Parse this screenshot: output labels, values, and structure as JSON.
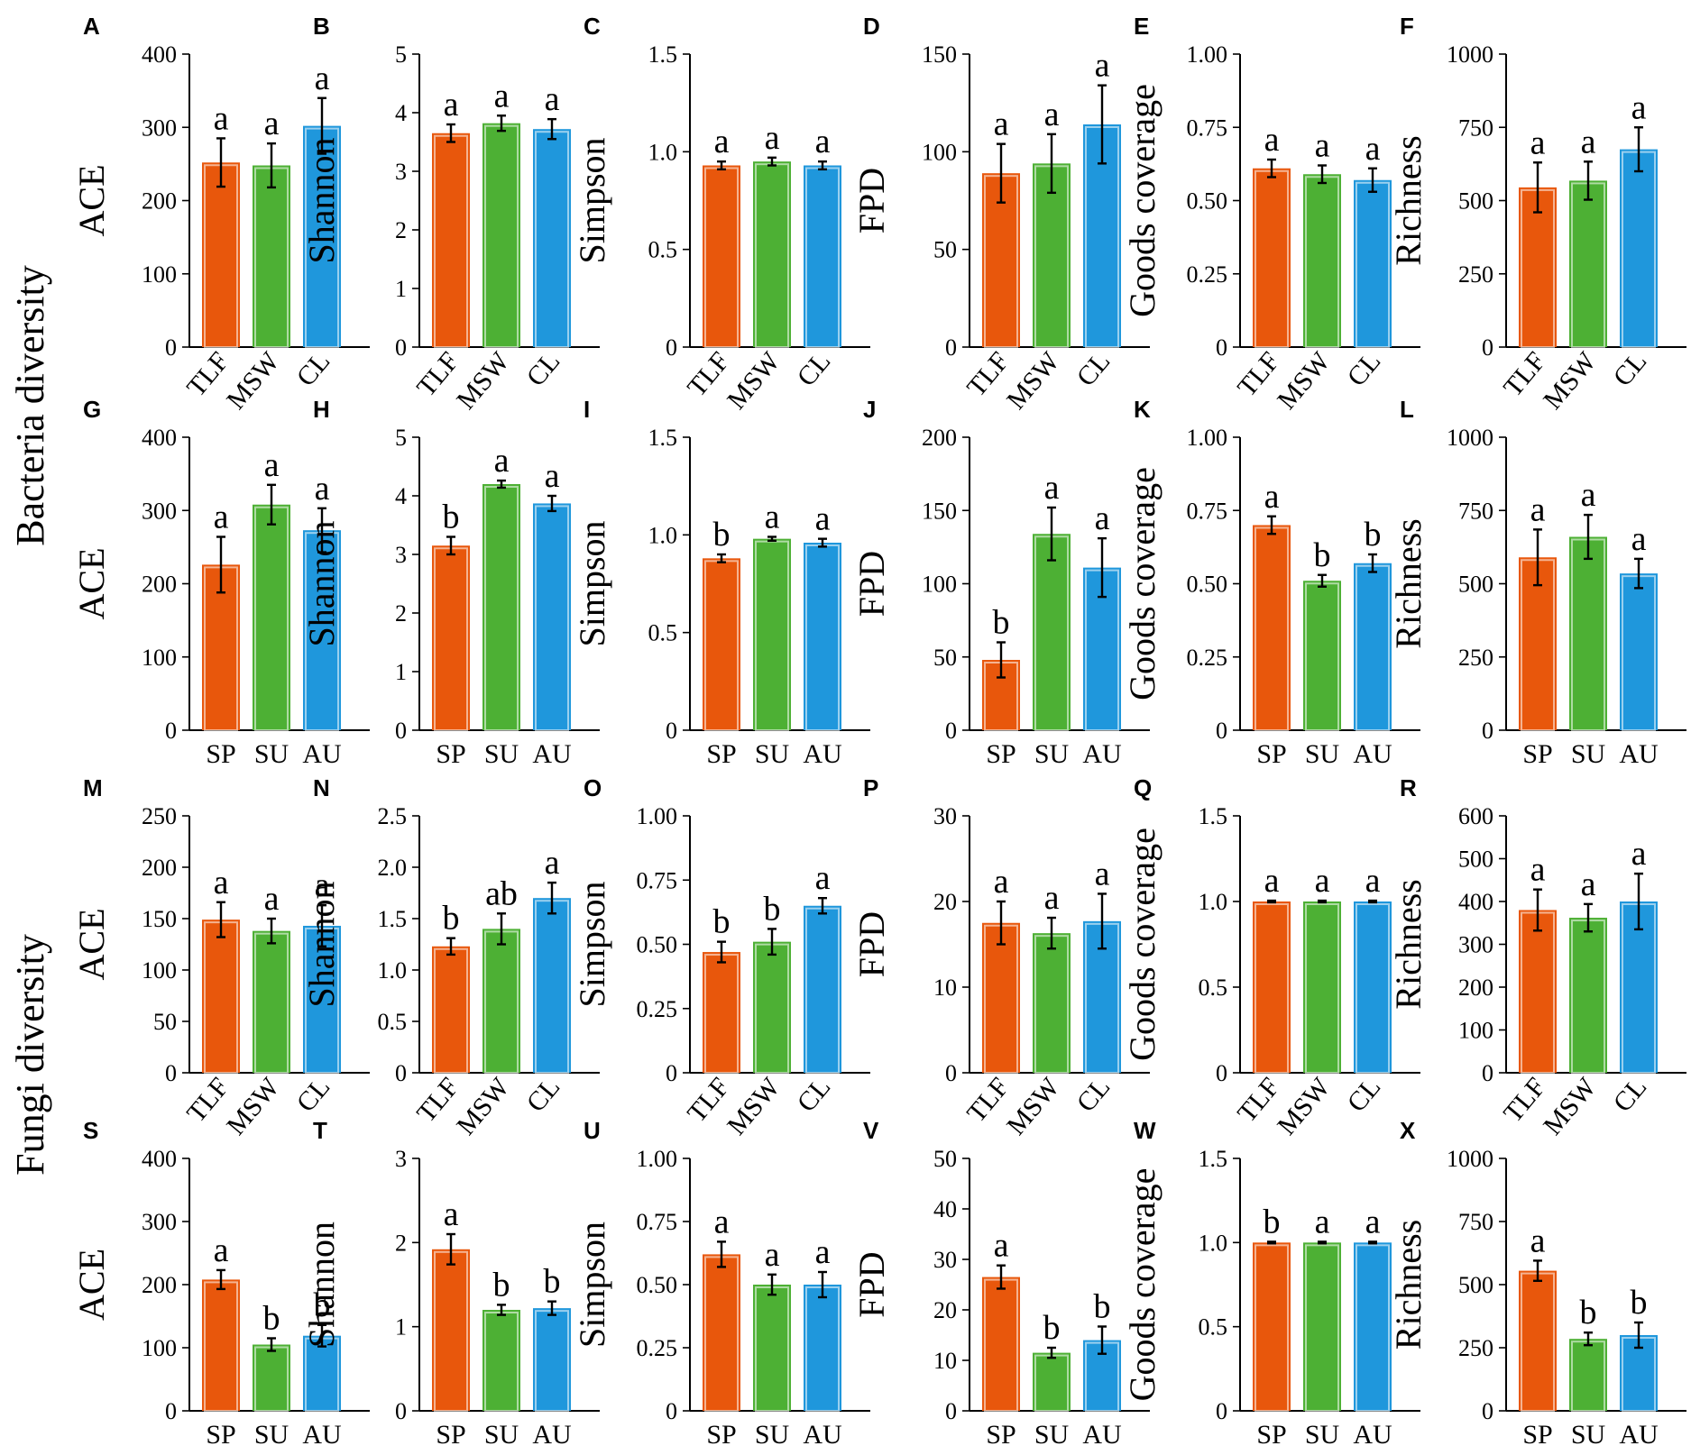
{
  "figure": {
    "row_labels": [
      "Bacteria diversity",
      "Fungi diversity"
    ]
  },
  "colors": {
    "group1": "#e8570c",
    "group2": "#4db034",
    "group3": "#1f97dc"
  },
  "chart_data": [
    {
      "id": "A",
      "type": "bar",
      "row": 0,
      "col": 0,
      "ylabel": "ACE",
      "ylim": [
        0,
        400
      ],
      "ticks": [
        0,
        100,
        200,
        300,
        400
      ],
      "tick_labels": [
        "0",
        "100",
        "200",
        "300",
        "400"
      ],
      "categories": [
        "TLF",
        "MSW",
        "CL"
      ],
      "cat_rotated": true,
      "values": [
        252,
        248,
        302
      ],
      "errors": [
        33,
        30,
        38
      ],
      "letters": [
        "a",
        "a",
        "a"
      ]
    },
    {
      "id": "B",
      "type": "bar",
      "row": 0,
      "col": 1,
      "ylabel": "Shannon",
      "ylim": [
        0,
        5
      ],
      "ticks": [
        0,
        1,
        2,
        3,
        4,
        5
      ],
      "tick_labels": [
        "0",
        "1",
        "2",
        "3",
        "4",
        "5"
      ],
      "categories": [
        "TLF",
        "MSW",
        "CL"
      ],
      "cat_rotated": true,
      "values": [
        3.65,
        3.82,
        3.72
      ],
      "errors": [
        0.15,
        0.13,
        0.17
      ],
      "letters": [
        "a",
        "a",
        "a"
      ]
    },
    {
      "id": "C",
      "type": "bar",
      "row": 0,
      "col": 2,
      "ylabel": "Simpson",
      "ylim": [
        0,
        1.5
      ],
      "ticks": [
        0,
        0.5,
        1.0,
        1.5
      ],
      "tick_labels": [
        "0",
        "0.5",
        "1.0",
        "1.5"
      ],
      "categories": [
        "TLF",
        "MSW",
        "CL"
      ],
      "cat_rotated": true,
      "values": [
        0.93,
        0.95,
        0.93
      ],
      "errors": [
        0.02,
        0.02,
        0.02
      ],
      "letters": [
        "a",
        "a",
        "a"
      ]
    },
    {
      "id": "D",
      "type": "bar",
      "row": 0,
      "col": 3,
      "ylabel": "FPD",
      "ylim": [
        0,
        150
      ],
      "ticks": [
        0,
        50,
        100,
        150
      ],
      "tick_labels": [
        "0",
        "50",
        "100",
        "150"
      ],
      "categories": [
        "TLF",
        "MSW",
        "CL"
      ],
      "cat_rotated": true,
      "values": [
        89,
        94,
        114
      ],
      "errors": [
        15,
        15,
        20
      ],
      "letters": [
        "a",
        "a",
        "a"
      ]
    },
    {
      "id": "E",
      "type": "bar",
      "row": 0,
      "col": 4,
      "ylabel": "Goods coverage",
      "ylim": [
        0,
        1.0
      ],
      "ticks": [
        0,
        0.25,
        0.5,
        0.75,
        1.0
      ],
      "tick_labels": [
        "0",
        "0.25",
        "0.50",
        "0.75",
        "1.00"
      ],
      "categories": [
        "TLF",
        "MSW",
        "CL"
      ],
      "cat_rotated": true,
      "values": [
        0.61,
        0.59,
        0.57
      ],
      "errors": [
        0.03,
        0.03,
        0.04
      ],
      "letters": [
        "a",
        "a",
        "a"
      ]
    },
    {
      "id": "F",
      "type": "bar",
      "row": 0,
      "col": 5,
      "ylabel": "Richness",
      "ylim": [
        0,
        1000
      ],
      "ticks": [
        0,
        250,
        500,
        750,
        1000
      ],
      "tick_labels": [
        "0",
        "250",
        "500",
        "750",
        "1000"
      ],
      "categories": [
        "TLF",
        "MSW",
        "CL"
      ],
      "cat_rotated": true,
      "values": [
        545,
        568,
        675
      ],
      "errors": [
        85,
        65,
        75
      ],
      "letters": [
        "a",
        "a",
        "a"
      ]
    },
    {
      "id": "G",
      "type": "bar",
      "row": 1,
      "col": 0,
      "ylabel": "ACE",
      "ylim": [
        0,
        400
      ],
      "ticks": [
        0,
        100,
        200,
        300,
        400
      ],
      "tick_labels": [
        "0",
        "100",
        "200",
        "300",
        "400"
      ],
      "categories": [
        "SP",
        "SU",
        "AU"
      ],
      "cat_rotated": false,
      "values": [
        226,
        308,
        273
      ],
      "errors": [
        38,
        27,
        30
      ],
      "letters": [
        "a",
        "a",
        "a"
      ]
    },
    {
      "id": "H",
      "type": "bar",
      "row": 1,
      "col": 1,
      "ylabel": "Shannon",
      "ylim": [
        0,
        5
      ],
      "ticks": [
        0,
        1,
        2,
        3,
        4,
        5
      ],
      "tick_labels": [
        "0",
        "1",
        "2",
        "3",
        "4",
        "5"
      ],
      "categories": [
        "SP",
        "SU",
        "AU"
      ],
      "cat_rotated": false,
      "values": [
        3.15,
        4.2,
        3.87
      ],
      "errors": [
        0.15,
        0.06,
        0.13
      ],
      "letters": [
        "b",
        "a",
        "a"
      ]
    },
    {
      "id": "I",
      "type": "bar",
      "row": 1,
      "col": 2,
      "ylabel": "Simpson",
      "ylim": [
        0,
        1.5
      ],
      "ticks": [
        0,
        0.5,
        1.0,
        1.5
      ],
      "tick_labels": [
        "0",
        "0.5",
        "1.0",
        "1.5"
      ],
      "categories": [
        "SP",
        "SU",
        "AU"
      ],
      "cat_rotated": false,
      "values": [
        0.88,
        0.98,
        0.96
      ],
      "errors": [
        0.02,
        0.01,
        0.02
      ],
      "letters": [
        "b",
        "a",
        "a"
      ]
    },
    {
      "id": "J",
      "type": "bar",
      "row": 1,
      "col": 3,
      "ylabel": "FPD",
      "ylim": [
        0,
        200
      ],
      "ticks": [
        0,
        50,
        100,
        150,
        200
      ],
      "tick_labels": [
        "0",
        "50",
        "100",
        "150",
        "200"
      ],
      "categories": [
        "SP",
        "SU",
        "AU"
      ],
      "cat_rotated": false,
      "values": [
        48,
        134,
        111
      ],
      "errors": [
        12,
        18,
        20
      ],
      "letters": [
        "b",
        "a",
        "a"
      ]
    },
    {
      "id": "K",
      "type": "bar",
      "row": 1,
      "col": 4,
      "ylabel": "Goods coverage",
      "ylim": [
        0,
        1.0
      ],
      "ticks": [
        0,
        0.25,
        0.5,
        0.75,
        1.0
      ],
      "tick_labels": [
        "0",
        "0.25",
        "0.50",
        "0.75",
        "1.00"
      ],
      "categories": [
        "SP",
        "SU",
        "AU"
      ],
      "cat_rotated": false,
      "values": [
        0.7,
        0.51,
        0.57
      ],
      "errors": [
        0.03,
        0.02,
        0.03
      ],
      "letters": [
        "a",
        "b",
        "b"
      ]
    },
    {
      "id": "L",
      "type": "bar",
      "row": 1,
      "col": 5,
      "ylabel": "Richness",
      "ylim": [
        0,
        1000
      ],
      "ticks": [
        0,
        250,
        500,
        750,
        1000
      ],
      "tick_labels": [
        "0",
        "250",
        "500",
        "750",
        "1000"
      ],
      "categories": [
        "SP",
        "SU",
        "AU"
      ],
      "cat_rotated": false,
      "values": [
        590,
        660,
        535
      ],
      "errors": [
        95,
        75,
        50
      ],
      "letters": [
        "a",
        "a",
        "a"
      ]
    },
    {
      "id": "M",
      "type": "bar",
      "row": 2,
      "col": 0,
      "ylabel": "ACE",
      "ylim": [
        0,
        250
      ],
      "ticks": [
        0,
        50,
        100,
        150,
        200,
        250
      ],
      "tick_labels": [
        "0",
        "50",
        "100",
        "150",
        "200",
        "250"
      ],
      "categories": [
        "TLF",
        "MSW",
        "CL"
      ],
      "cat_rotated": true,
      "values": [
        149,
        138,
        143
      ],
      "errors": [
        17,
        12,
        20
      ],
      "letters": [
        "a",
        "a",
        "a"
      ]
    },
    {
      "id": "N",
      "type": "bar",
      "row": 2,
      "col": 1,
      "ylabel": "Shannon",
      "ylim": [
        0,
        2.5
      ],
      "ticks": [
        0,
        0.5,
        1.0,
        1.5,
        2.0,
        2.5
      ],
      "tick_labels": [
        "0",
        "0.5",
        "1.0",
        "1.5",
        "2.0",
        "2.5"
      ],
      "categories": [
        "TLF",
        "MSW",
        "CL"
      ],
      "cat_rotated": true,
      "values": [
        1.23,
        1.4,
        1.7
      ],
      "errors": [
        0.08,
        0.15,
        0.15
      ],
      "letters": [
        "b",
        "ab",
        "a"
      ]
    },
    {
      "id": "O",
      "type": "bar",
      "row": 2,
      "col": 2,
      "ylabel": "Simpson",
      "ylim": [
        0,
        1.0
      ],
      "ticks": [
        0,
        0.25,
        0.5,
        0.75,
        1.0
      ],
      "tick_labels": [
        "0",
        "0.25",
        "0.50",
        "0.75",
        "1.00"
      ],
      "categories": [
        "TLF",
        "MSW",
        "CL"
      ],
      "cat_rotated": true,
      "values": [
        0.47,
        0.51,
        0.65
      ],
      "errors": [
        0.04,
        0.05,
        0.03
      ],
      "letters": [
        "b",
        "b",
        "a"
      ]
    },
    {
      "id": "P",
      "type": "bar",
      "row": 2,
      "col": 3,
      "ylabel": "FPD",
      "ylim": [
        0,
        30
      ],
      "ticks": [
        0,
        10,
        20,
        30
      ],
      "tick_labels": [
        "0",
        "10",
        "20",
        "30"
      ],
      "categories": [
        "TLF",
        "MSW",
        "CL"
      ],
      "cat_rotated": true,
      "values": [
        17.5,
        16.3,
        17.7
      ],
      "errors": [
        2.5,
        1.8,
        3.2
      ],
      "letters": [
        "a",
        "a",
        "a"
      ]
    },
    {
      "id": "Q",
      "type": "bar",
      "row": 2,
      "col": 4,
      "ylabel": "Goods coverage",
      "ylim": [
        0,
        1.5
      ],
      "ticks": [
        0,
        0.5,
        1.0,
        1.5
      ],
      "tick_labels": [
        "0",
        "0.5",
        "1.0",
        "1.5"
      ],
      "categories": [
        "TLF",
        "MSW",
        "CL"
      ],
      "cat_rotated": true,
      "values": [
        1.0,
        1.0,
        1.0
      ],
      "errors": [
        0.005,
        0.005,
        0.005
      ],
      "letters": [
        "a",
        "a",
        "a"
      ]
    },
    {
      "id": "R",
      "type": "bar",
      "row": 2,
      "col": 5,
      "ylabel": "Richness",
      "ylim": [
        0,
        600
      ],
      "ticks": [
        0,
        100,
        200,
        300,
        400,
        500,
        600
      ],
      "tick_labels": [
        "0",
        "100",
        "200",
        "300",
        "400",
        "500",
        "600"
      ],
      "categories": [
        "TLF",
        "MSW",
        "CL"
      ],
      "cat_rotated": true,
      "values": [
        380,
        362,
        400
      ],
      "errors": [
        48,
        32,
        65
      ],
      "letters": [
        "a",
        "a",
        "a"
      ]
    },
    {
      "id": "S",
      "type": "bar",
      "row": 3,
      "col": 0,
      "ylabel": "ACE",
      "ylim": [
        0,
        400
      ],
      "ticks": [
        0,
        100,
        200,
        300,
        400
      ],
      "tick_labels": [
        "0",
        "100",
        "200",
        "300",
        "400"
      ],
      "categories": [
        "SP",
        "SU",
        "AU"
      ],
      "cat_rotated": false,
      "values": [
        208,
        105,
        119
      ],
      "errors": [
        15,
        10,
        17
      ],
      "letters": [
        "a",
        "b",
        "b"
      ]
    },
    {
      "id": "T",
      "type": "bar",
      "row": 3,
      "col": 1,
      "ylabel": "Shannon",
      "ylim": [
        0,
        3
      ],
      "ticks": [
        0,
        1,
        2,
        3
      ],
      "tick_labels": [
        "0",
        "1",
        "2",
        "3"
      ],
      "categories": [
        "SP",
        "SU",
        "AU"
      ],
      "cat_rotated": false,
      "values": [
        1.92,
        1.2,
        1.22
      ],
      "errors": [
        0.18,
        0.06,
        0.08
      ],
      "letters": [
        "a",
        "b",
        "b"
      ]
    },
    {
      "id": "U",
      "type": "bar",
      "row": 3,
      "col": 2,
      "ylabel": "Simpson",
      "ylim": [
        0,
        1.0
      ],
      "ticks": [
        0,
        0.25,
        0.5,
        0.75,
        1.0
      ],
      "tick_labels": [
        "0",
        "0.25",
        "0.50",
        "0.75",
        "1.00"
      ],
      "categories": [
        "SP",
        "SU",
        "AU"
      ],
      "cat_rotated": false,
      "values": [
        0.62,
        0.5,
        0.5
      ],
      "errors": [
        0.05,
        0.04,
        0.05
      ],
      "letters": [
        "a",
        "a",
        "a"
      ]
    },
    {
      "id": "V",
      "type": "bar",
      "row": 3,
      "col": 3,
      "ylabel": "FPD",
      "ylim": [
        0,
        50
      ],
      "ticks": [
        0,
        10,
        20,
        30,
        40,
        50
      ],
      "tick_labels": [
        "0",
        "10",
        "20",
        "30",
        "40",
        "50"
      ],
      "categories": [
        "SP",
        "SU",
        "AU"
      ],
      "cat_rotated": false,
      "values": [
        26.5,
        11.5,
        14
      ],
      "errors": [
        2.3,
        1,
        2.7
      ],
      "letters": [
        "a",
        "b",
        "b"
      ]
    },
    {
      "id": "W",
      "type": "bar",
      "row": 3,
      "col": 4,
      "ylabel": "Goods coverage",
      "ylim": [
        0,
        1.5
      ],
      "ticks": [
        0,
        0.5,
        1.0,
        1.5
      ],
      "tick_labels": [
        "0",
        "0.5",
        "1.0",
        "1.5"
      ],
      "categories": [
        "SP",
        "SU",
        "AU"
      ],
      "cat_rotated": false,
      "values": [
        1.0,
        1.0,
        1.0
      ],
      "errors": [
        0.005,
        0.005,
        0.005
      ],
      "letters": [
        "b",
        "a",
        "a"
      ]
    },
    {
      "id": "X",
      "type": "bar",
      "row": 3,
      "col": 5,
      "ylabel": "Richness",
      "ylim": [
        0,
        1000
      ],
      "ticks": [
        0,
        250,
        500,
        750,
        1000
      ],
      "tick_labels": [
        "0",
        "250",
        "500",
        "750",
        "1000"
      ],
      "categories": [
        "SP",
        "SU",
        "AU"
      ],
      "cat_rotated": false,
      "values": [
        555,
        285,
        300
      ],
      "errors": [
        40,
        25,
        50
      ],
      "letters": [
        "a",
        "b",
        "b"
      ]
    }
  ]
}
